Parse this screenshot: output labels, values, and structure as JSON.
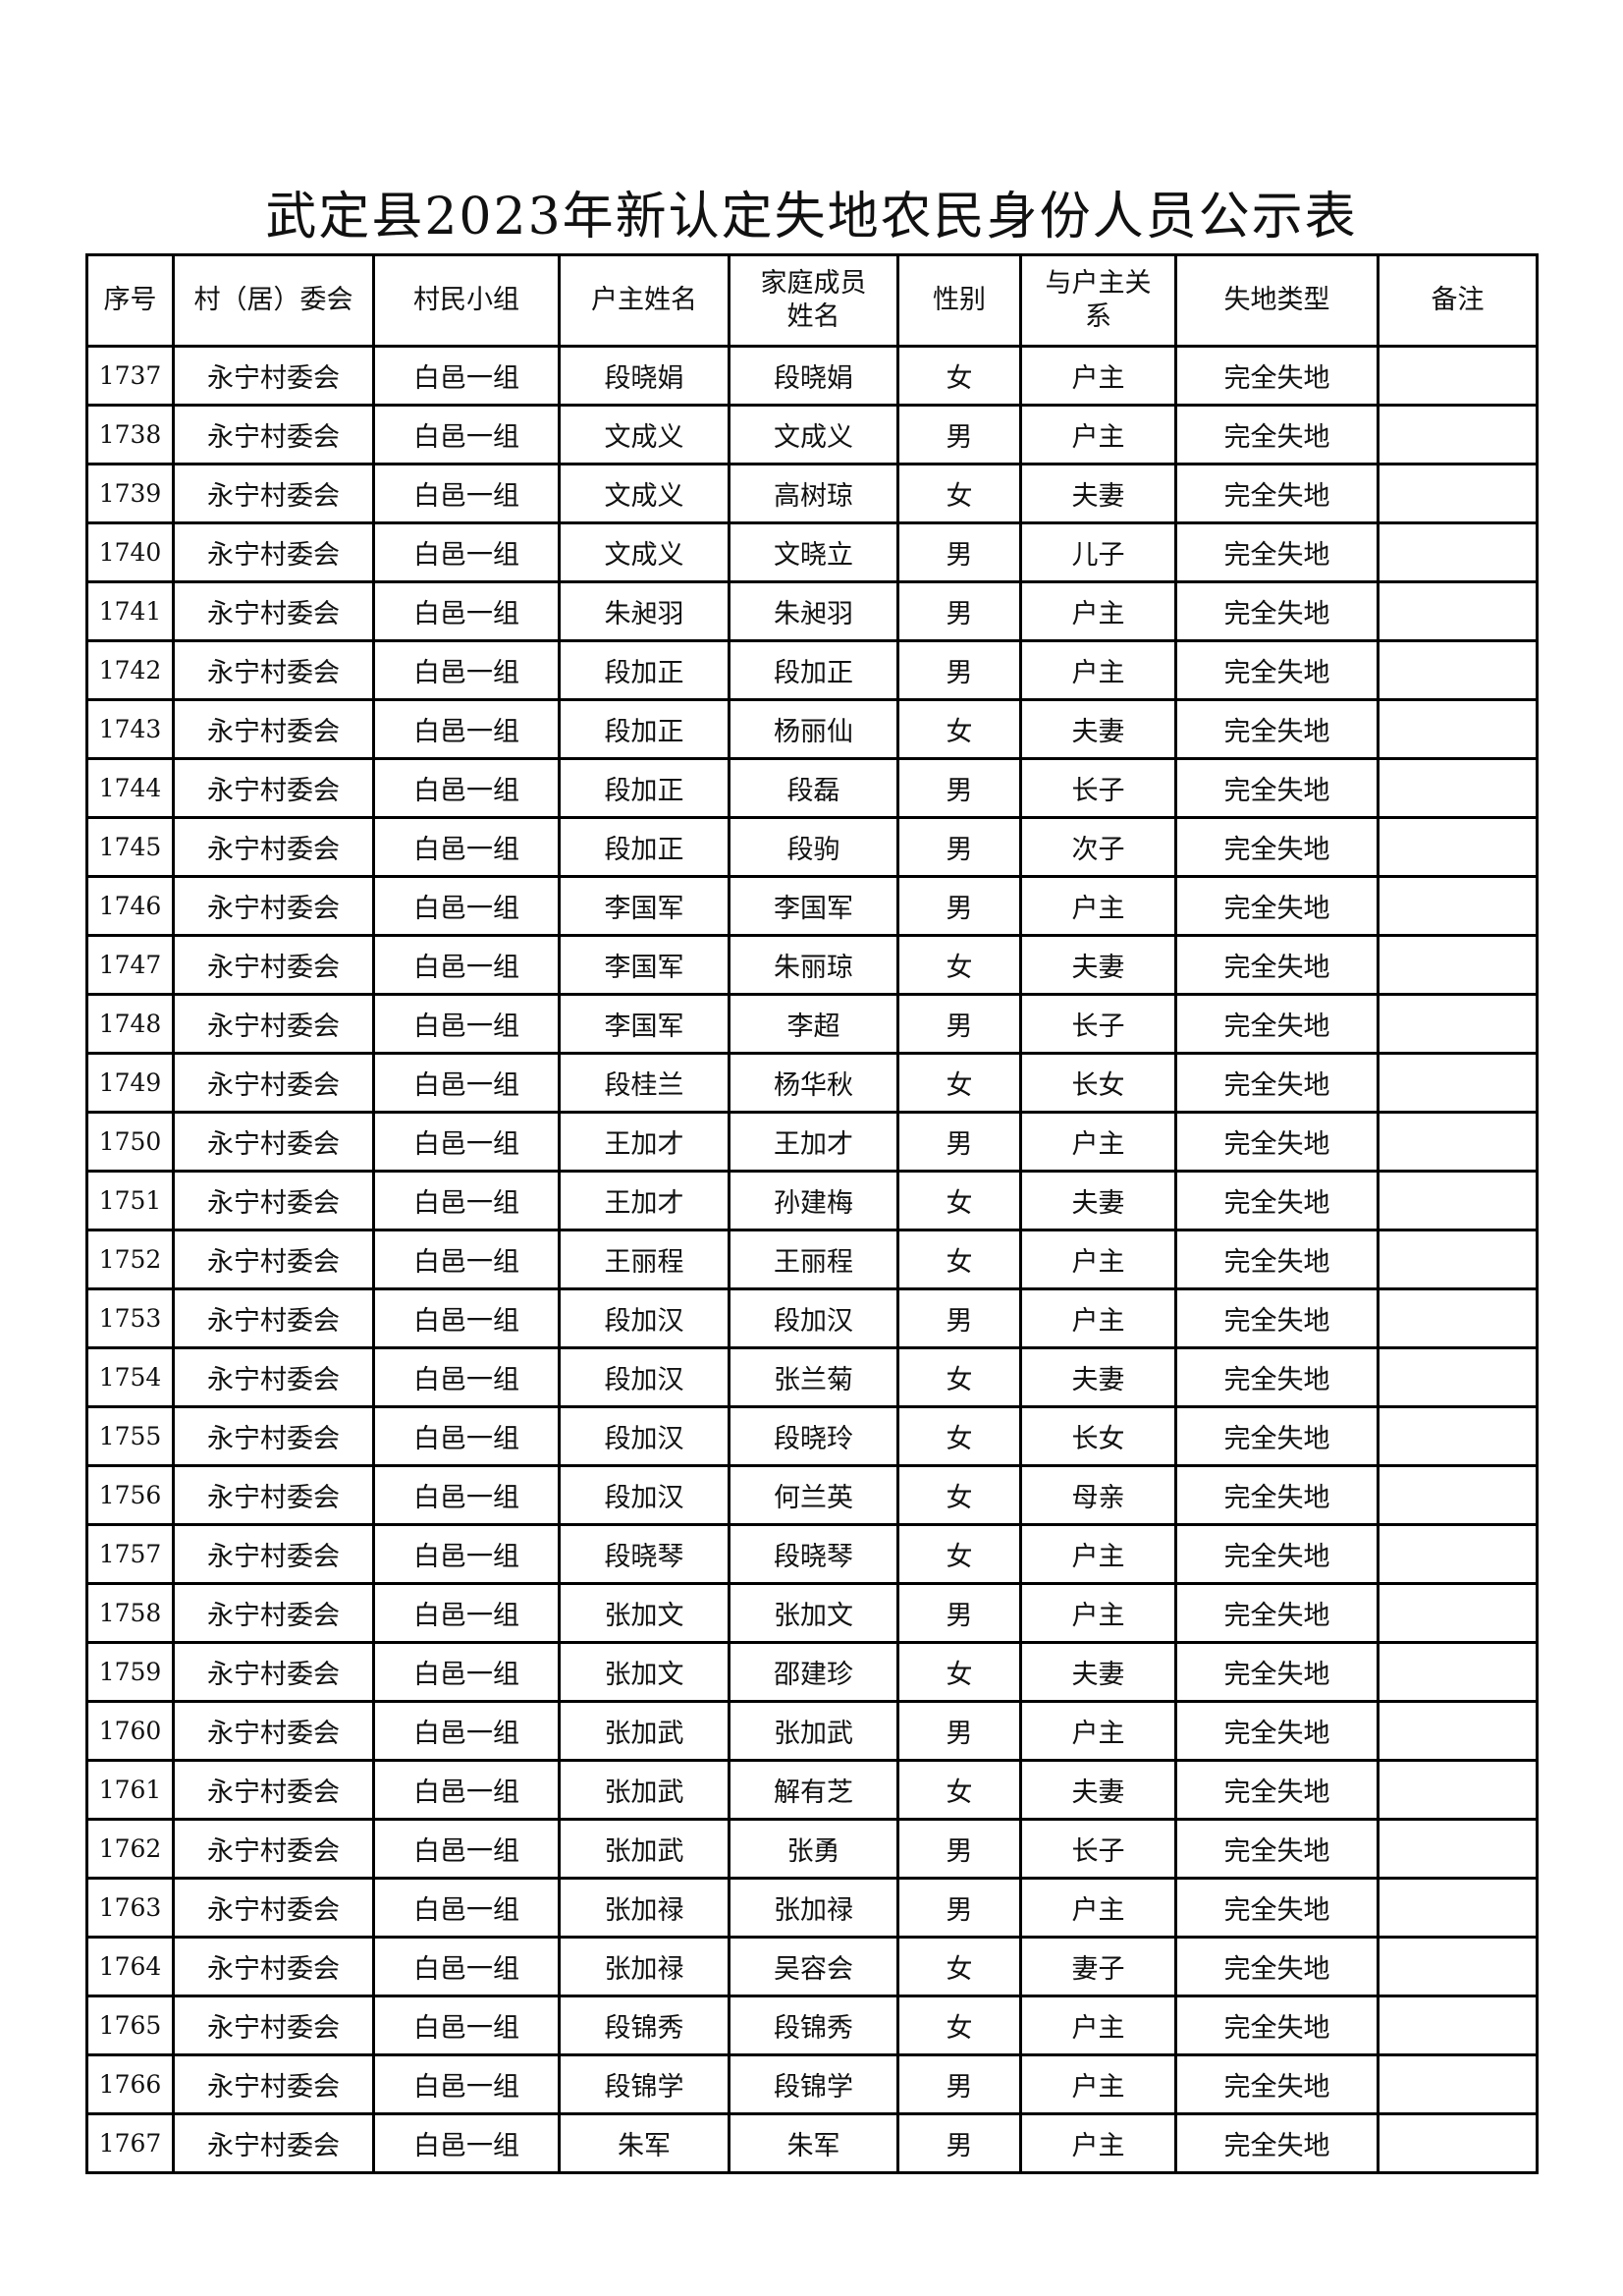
{
  "title": "武定县2023年新认定失地农民身份人员公示表",
  "headers": [
    "序号",
    "村（居）委会",
    "村民小组",
    "户主姓名",
    "家庭成员姓名",
    "性别",
    "与户主关系",
    "失地类型",
    "备注"
  ],
  "rows": [
    [
      "1737",
      "永宁村委会",
      "白邑一组",
      "段晓娟",
      "段晓娟",
      "女",
      "户主",
      "完全失地",
      ""
    ],
    [
      "1738",
      "永宁村委会",
      "白邑一组",
      "文成义",
      "文成义",
      "男",
      "户主",
      "完全失地",
      ""
    ],
    [
      "1739",
      "永宁村委会",
      "白邑一组",
      "文成义",
      "高树琼",
      "女",
      "夫妻",
      "完全失地",
      ""
    ],
    [
      "1740",
      "永宁村委会",
      "白邑一组",
      "文成义",
      "文晓立",
      "男",
      "儿子",
      "完全失地",
      ""
    ],
    [
      "1741",
      "永宁村委会",
      "白邑一组",
      "朱昶羽",
      "朱昶羽",
      "男",
      "户主",
      "完全失地",
      ""
    ],
    [
      "1742",
      "永宁村委会",
      "白邑一组",
      "段加正",
      "段加正",
      "男",
      "户主",
      "完全失地",
      ""
    ],
    [
      "1743",
      "永宁村委会",
      "白邑一组",
      "段加正",
      "杨丽仙",
      "女",
      "夫妻",
      "完全失地",
      ""
    ],
    [
      "1744",
      "永宁村委会",
      "白邑一组",
      "段加正",
      "段磊",
      "男",
      "长子",
      "完全失地",
      ""
    ],
    [
      "1745",
      "永宁村委会",
      "白邑一组",
      "段加正",
      "段驹",
      "男",
      "次子",
      "完全失地",
      ""
    ],
    [
      "1746",
      "永宁村委会",
      "白邑一组",
      "李国军",
      "李国军",
      "男",
      "户主",
      "完全失地",
      ""
    ],
    [
      "1747",
      "永宁村委会",
      "白邑一组",
      "李国军",
      "朱丽琼",
      "女",
      "夫妻",
      "完全失地",
      ""
    ],
    [
      "1748",
      "永宁村委会",
      "白邑一组",
      "李国军",
      "李超",
      "男",
      "长子",
      "完全失地",
      ""
    ],
    [
      "1749",
      "永宁村委会",
      "白邑一组",
      "段桂兰",
      "杨华秋",
      "女",
      "长女",
      "完全失地",
      ""
    ],
    [
      "1750",
      "永宁村委会",
      "白邑一组",
      "王加才",
      "王加才",
      "男",
      "户主",
      "完全失地",
      ""
    ],
    [
      "1751",
      "永宁村委会",
      "白邑一组",
      "王加才",
      "孙建梅",
      "女",
      "夫妻",
      "完全失地",
      ""
    ],
    [
      "1752",
      "永宁村委会",
      "白邑一组",
      "王丽程",
      "王丽程",
      "女",
      "户主",
      "完全失地",
      ""
    ],
    [
      "1753",
      "永宁村委会",
      "白邑一组",
      "段加汉",
      "段加汉",
      "男",
      "户主",
      "完全失地",
      ""
    ],
    [
      "1754",
      "永宁村委会",
      "白邑一组",
      "段加汉",
      "张兰菊",
      "女",
      "夫妻",
      "完全失地",
      ""
    ],
    [
      "1755",
      "永宁村委会",
      "白邑一组",
      "段加汉",
      "段晓玲",
      "女",
      "长女",
      "完全失地",
      ""
    ],
    [
      "1756",
      "永宁村委会",
      "白邑一组",
      "段加汉",
      "何兰英",
      "女",
      "母亲",
      "完全失地",
      ""
    ],
    [
      "1757",
      "永宁村委会",
      "白邑一组",
      "段晓琴",
      "段晓琴",
      "女",
      "户主",
      "完全失地",
      ""
    ],
    [
      "1758",
      "永宁村委会",
      "白邑一组",
      "张加文",
      "张加文",
      "男",
      "户主",
      "完全失地",
      ""
    ],
    [
      "1759",
      "永宁村委会",
      "白邑一组",
      "张加文",
      "邵建珍",
      "女",
      "夫妻",
      "完全失地",
      ""
    ],
    [
      "1760",
      "永宁村委会",
      "白邑一组",
      "张加武",
      "张加武",
      "男",
      "户主",
      "完全失地",
      ""
    ],
    [
      "1761",
      "永宁村委会",
      "白邑一组",
      "张加武",
      "解有芝",
      "女",
      "夫妻",
      "完全失地",
      ""
    ],
    [
      "1762",
      "永宁村委会",
      "白邑一组",
      "张加武",
      "张勇",
      "男",
      "长子",
      "完全失地",
      ""
    ],
    [
      "1763",
      "永宁村委会",
      "白邑一组",
      "张加禄",
      "张加禄",
      "男",
      "户主",
      "完全失地",
      ""
    ],
    [
      "1764",
      "永宁村委会",
      "白邑一组",
      "张加禄",
      "吴容会",
      "女",
      "妻子",
      "完全失地",
      ""
    ],
    [
      "1765",
      "永宁村委会",
      "白邑一组",
      "段锦秀",
      "段锦秀",
      "女",
      "户主",
      "完全失地",
      ""
    ],
    [
      "1766",
      "永宁村委会",
      "白邑一组",
      "段锦学",
      "段锦学",
      "男",
      "户主",
      "完全失地",
      ""
    ],
    [
      "1767",
      "永宁村委会",
      "白邑一组",
      "朱军",
      "朱军",
      "男",
      "户主",
      "完全失地",
      ""
    ]
  ]
}
